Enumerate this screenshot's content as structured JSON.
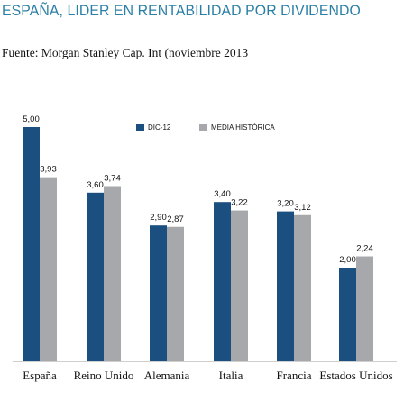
{
  "header": {
    "title": "ESPAÑA, LIDER EN RENTABILIDAD POR DIVIDENDO",
    "source": "Fuente: Morgan Stanley Cap. Int (noviembre 2013"
  },
  "colors": {
    "series_1": "#1b4f80",
    "series_2": "#a6a8ab",
    "title": "#2b7fa6"
  },
  "chart_data": {
    "type": "bar",
    "categories": [
      "España",
      "Reino Unido",
      "Alemania",
      "Italia",
      "Francia",
      "Estados Unidos"
    ],
    "series": [
      {
        "name": "DIC-12",
        "values": [
          5.0,
          3.6,
          2.9,
          3.4,
          3.2,
          2.0
        ],
        "labels": [
          "5,00",
          "3,60",
          "2,90",
          "3,40",
          "3,20",
          "2,00"
        ]
      },
      {
        "name": "MEDIA HISTÓRICA",
        "values": [
          3.93,
          3.74,
          2.87,
          3.22,
          3.12,
          2.24
        ],
        "labels": [
          "3,93",
          "3,74",
          "2,87",
          "3,22",
          "3,12",
          "2,24"
        ]
      }
    ],
    "ylim": [
      0,
      5
    ],
    "grid": false,
    "legend_position": "top-center"
  }
}
